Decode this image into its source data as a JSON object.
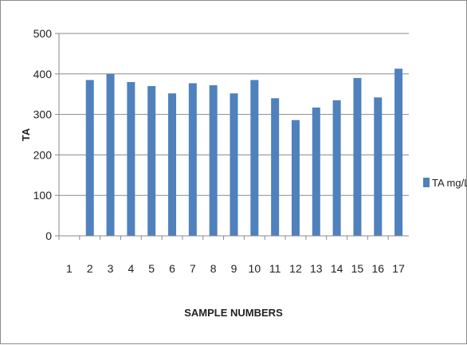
{
  "chart_data": {
    "type": "bar",
    "title": "",
    "xlabel": "SAMPLE NUMBERS",
    "ylabel": "TA",
    "ylim": [
      0,
      500
    ],
    "yticks": [
      0,
      100,
      200,
      300,
      400,
      500
    ],
    "grid": true,
    "legend_position": "right",
    "categories": [
      "1",
      "2",
      "3",
      "4",
      "5",
      "6",
      "7",
      "8",
      "9",
      "10",
      "11",
      "12",
      "13",
      "14",
      "15",
      "16",
      "17"
    ],
    "series": [
      {
        "name": "TA mg/L",
        "color": "#4f81bd",
        "values": [
          null,
          385,
          400,
          380,
          370,
          352,
          377,
          372,
          352,
          385,
          340,
          286,
          317,
          335,
          390,
          342,
          413
        ]
      }
    ]
  }
}
